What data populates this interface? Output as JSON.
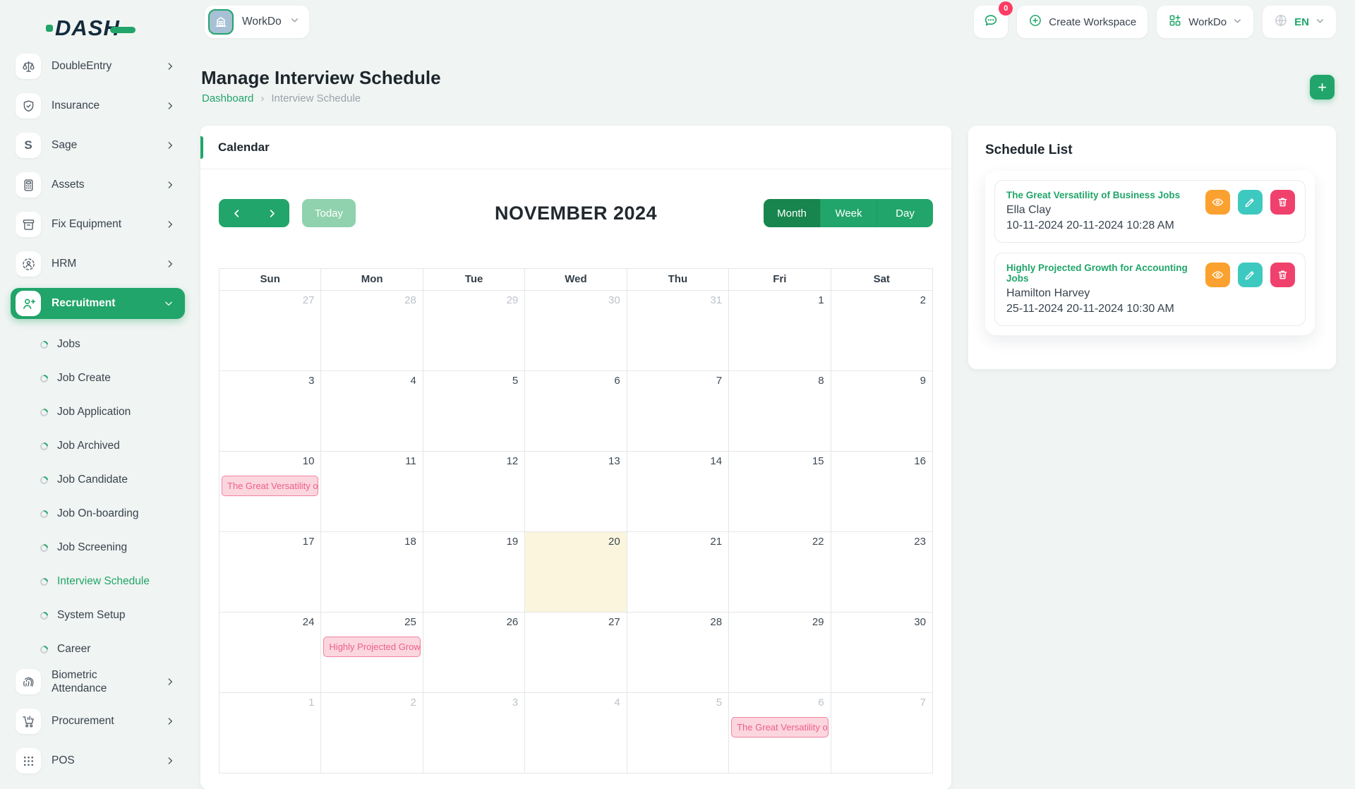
{
  "brand": {
    "logo_text": "DASH"
  },
  "header": {
    "workspace_label": "WorkDo",
    "messages_badge": "0",
    "create_workspace_label": "Create Workspace",
    "workdo_label": "WorkDo",
    "language_code": "EN"
  },
  "sidebar": {
    "items": [
      {
        "type": "parent",
        "icon": "scale-icon",
        "label": "DoubleEntry",
        "chevron": "right"
      },
      {
        "type": "parent",
        "icon": "shield-icon",
        "label": "Insurance",
        "chevron": "right"
      },
      {
        "type": "parent",
        "icon": "sage-icon",
        "label": "Sage",
        "chevron": "right"
      },
      {
        "type": "parent",
        "icon": "calculator-icon",
        "label": "Assets",
        "chevron": "right"
      },
      {
        "type": "parent",
        "icon": "archive-icon",
        "label": "Fix Equipment",
        "chevron": "right"
      },
      {
        "type": "parent",
        "icon": "hrm-icon",
        "label": "HRM",
        "chevron": "right"
      },
      {
        "type": "parent",
        "icon": "user-plus-icon",
        "label": "Recruitment",
        "chevron": "down",
        "active": true
      },
      {
        "type": "child",
        "label": "Jobs"
      },
      {
        "type": "child",
        "label": "Job Create"
      },
      {
        "type": "child",
        "label": "Job Application"
      },
      {
        "type": "child",
        "label": "Job Archived"
      },
      {
        "type": "child",
        "label": "Job Candidate"
      },
      {
        "type": "child",
        "label": "Job On-boarding"
      },
      {
        "type": "child",
        "label": "Job Screening"
      },
      {
        "type": "child",
        "label": "Interview Schedule",
        "active": true
      },
      {
        "type": "child",
        "label": "System Setup"
      },
      {
        "type": "child",
        "label": "Career"
      },
      {
        "type": "parent",
        "icon": "fingerprint-icon",
        "label": "Biometric Attendance",
        "chevron": "right"
      },
      {
        "type": "parent",
        "icon": "cart-icon",
        "label": "Procurement",
        "chevron": "right"
      },
      {
        "type": "parent",
        "icon": "grid-icon",
        "label": "POS",
        "chevron": "right"
      }
    ]
  },
  "page": {
    "title": "Manage Interview Schedule",
    "breadcrumb_home": "Dashboard",
    "breadcrumb_current": "Interview Schedule",
    "add_label": "+"
  },
  "calendar": {
    "card_title": "Calendar",
    "toolbar": {
      "today_label": "Today",
      "title": "NOVEMBER 2024",
      "views": [
        "Month",
        "Week",
        "Day"
      ],
      "active_view": "Month"
    },
    "day_headers": [
      "Sun",
      "Mon",
      "Tue",
      "Wed",
      "Thu",
      "Fri",
      "Sat"
    ],
    "weeks": [
      {
        "days": [
          {
            "n": "27",
            "muted": true
          },
          {
            "n": "28",
            "muted": true
          },
          {
            "n": "29",
            "muted": true
          },
          {
            "n": "30",
            "muted": true
          },
          {
            "n": "31",
            "muted": true
          },
          {
            "n": "1"
          },
          {
            "n": "2"
          }
        ]
      },
      {
        "days": [
          {
            "n": "3"
          },
          {
            "n": "4"
          },
          {
            "n": "5"
          },
          {
            "n": "6"
          },
          {
            "n": "7"
          },
          {
            "n": "8"
          },
          {
            "n": "9"
          }
        ]
      },
      {
        "days": [
          {
            "n": "10",
            "event": "The Great Versatility of Business Jobs"
          },
          {
            "n": "11"
          },
          {
            "n": "12"
          },
          {
            "n": "13"
          },
          {
            "n": "14"
          },
          {
            "n": "15"
          },
          {
            "n": "16"
          }
        ]
      },
      {
        "days": [
          {
            "n": "17"
          },
          {
            "n": "18"
          },
          {
            "n": "19"
          },
          {
            "n": "20",
            "today": true
          },
          {
            "n": "21"
          },
          {
            "n": "22"
          },
          {
            "n": "23"
          }
        ]
      },
      {
        "days": [
          {
            "n": "24"
          },
          {
            "n": "25",
            "event": "Highly Projected Growth for Accounting Jobs"
          },
          {
            "n": "26"
          },
          {
            "n": "27"
          },
          {
            "n": "28"
          },
          {
            "n": "29"
          },
          {
            "n": "30"
          }
        ]
      },
      {
        "days": [
          {
            "n": "1",
            "muted": true
          },
          {
            "n": "2",
            "muted": true
          },
          {
            "n": "3",
            "muted": true
          },
          {
            "n": "4",
            "muted": true
          },
          {
            "n": "5",
            "muted": true
          },
          {
            "n": "6",
            "muted": true,
            "event": "The Great Versatility of Business Jobs"
          },
          {
            "n": "7",
            "muted": true
          }
        ]
      }
    ]
  },
  "schedule_list": {
    "title": "Schedule List",
    "items": [
      {
        "title": "The Great Versatility of Business Jobs",
        "person": "Ella Clay",
        "datetime": "10-11-2024 20-11-2024 10:28 AM"
      },
      {
        "title": "Highly Projected Growth for Accounting Jobs",
        "person": "Hamilton Harvey",
        "datetime": "25-11-2024 20-11-2024 10:30 AM"
      }
    ]
  },
  "colors": {
    "accent_green": "#21a56a",
    "active_view_green": "#17854d",
    "today_cell": "#fcf5dd",
    "event_bg": "#fbd6df",
    "event_border": "#f1839f",
    "event_text": "#ee5f8d",
    "badge_red": "#fd3c64",
    "action_view": "#fba12f",
    "action_edit": "#3ec9c0",
    "action_delete": "#f0416c"
  }
}
